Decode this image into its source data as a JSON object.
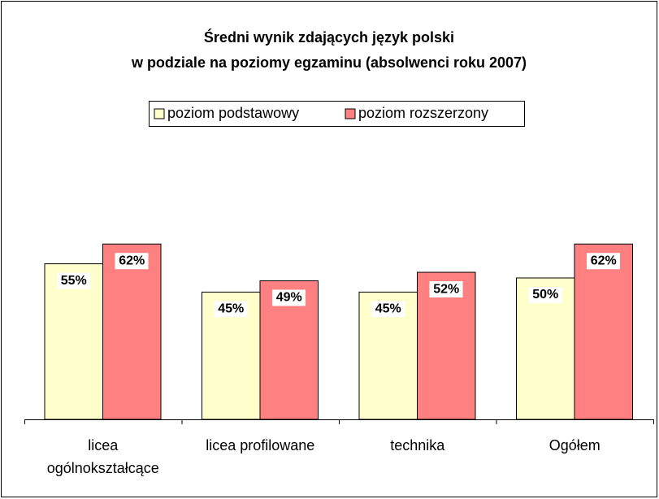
{
  "chart_data": {
    "type": "bar",
    "title": "Średni wynik zdających język polski",
    "subtitle": "w podziale na poziomy egzaminu (absolwenci roku 2007)",
    "categories": [
      "licea ogólnokształcące",
      "licea profilowane",
      "technika",
      "Ogółem"
    ],
    "series": [
      {
        "name": "poziom podstawowy",
        "color": "#ffffcc",
        "values": [
          55,
          45,
          45,
          50
        ],
        "value_labels": [
          "55%",
          "45%",
          "45%",
          "50%"
        ]
      },
      {
        "name": "poziom rozszerzony",
        "color": "#ff8080",
        "values": [
          62,
          49,
          52,
          62
        ],
        "value_labels": [
          "62%",
          "49%",
          "52%",
          "62%"
        ]
      }
    ],
    "legend": "top"
  }
}
